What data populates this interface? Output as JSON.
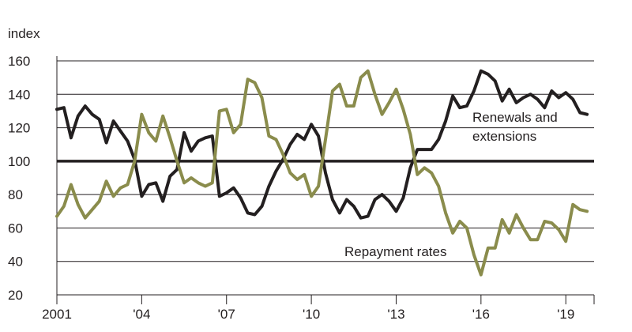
{
  "chart_data": {
    "type": "line",
    "ylabel": "index",
    "ylim": [
      20,
      160
    ],
    "yticks": [
      20,
      40,
      60,
      80,
      100,
      120,
      140,
      160
    ],
    "xlim": [
      2001,
      2020.0
    ],
    "xticks": [
      {
        "value": 2001,
        "label": "2001"
      },
      {
        "value": 2004,
        "label": "'04"
      },
      {
        "value": 2007,
        "label": "'07"
      },
      {
        "value": 2010,
        "label": "'10"
      },
      {
        "value": 2013,
        "label": "'13"
      },
      {
        "value": 2016,
        "label": "'16"
      },
      {
        "value": 2019,
        "label": "'19"
      }
    ],
    "grid": true,
    "reference_line": 100,
    "series": [
      {
        "name": "Renewals and extensions",
        "label_lines": [
          "Renewals and",
          "extensions"
        ],
        "color": "#231f20",
        "x": [
          2001.0,
          2001.25,
          2001.5,
          2001.75,
          2002.0,
          2002.25,
          2002.5,
          2002.75,
          2003.0,
          2003.25,
          2003.5,
          2003.75,
          2004.0,
          2004.25,
          2004.5,
          2004.75,
          2005.0,
          2005.25,
          2005.5,
          2005.75,
          2006.0,
          2006.25,
          2006.5,
          2006.75,
          2007.0,
          2007.25,
          2007.5,
          2007.75,
          2008.0,
          2008.25,
          2008.5,
          2008.75,
          2009.0,
          2009.25,
          2009.5,
          2009.75,
          2010.0,
          2010.25,
          2010.5,
          2010.75,
          2011.0,
          2011.25,
          2011.5,
          2011.75,
          2012.0,
          2012.25,
          2012.5,
          2012.75,
          2013.0,
          2013.25,
          2013.5,
          2013.75,
          2014.0,
          2014.25,
          2014.5,
          2014.75,
          2015.0,
          2015.25,
          2015.5,
          2015.75,
          2016.0,
          2016.25,
          2016.5,
          2016.75,
          2017.0,
          2017.25,
          2017.5,
          2017.75,
          2018.0,
          2018.25,
          2018.5,
          2018.75,
          2019.0,
          2019.25,
          2019.5,
          2019.75
        ],
        "values": [
          131,
          132,
          114,
          127,
          133,
          128,
          125,
          111,
          124,
          118,
          112,
          101,
          79,
          86,
          87,
          76,
          91,
          95,
          117,
          106,
          112,
          114,
          115,
          79,
          81,
          84,
          78,
          69,
          68,
          73,
          85,
          94,
          101,
          110,
          116,
          113,
          122,
          115,
          93,
          77,
          69,
          77,
          73,
          66,
          67,
          77,
          80,
          76,
          70,
          78,
          96,
          107,
          107,
          107,
          113,
          124,
          139,
          132,
          133,
          142,
          154,
          152,
          148,
          136,
          143,
          135,
          138,
          140,
          137,
          132,
          142,
          138,
          141,
          137,
          129,
          128
        ]
      },
      {
        "name": "Repayment rates",
        "label_lines": [
          "Repayment rates"
        ],
        "color": "#8a8c4c",
        "x": [
          2001.0,
          2001.25,
          2001.5,
          2001.75,
          2002.0,
          2002.25,
          2002.5,
          2002.75,
          2003.0,
          2003.25,
          2003.5,
          2003.75,
          2004.0,
          2004.25,
          2004.5,
          2004.75,
          2005.0,
          2005.25,
          2005.5,
          2005.75,
          2006.0,
          2006.25,
          2006.5,
          2006.75,
          2007.0,
          2007.25,
          2007.5,
          2007.75,
          2008.0,
          2008.25,
          2008.5,
          2008.75,
          2009.0,
          2009.25,
          2009.5,
          2009.75,
          2010.0,
          2010.25,
          2010.5,
          2010.75,
          2011.0,
          2011.25,
          2011.5,
          2011.75,
          2012.0,
          2012.25,
          2012.5,
          2012.75,
          2013.0,
          2013.25,
          2013.5,
          2013.75,
          2014.0,
          2014.25,
          2014.5,
          2014.75,
          2015.0,
          2015.25,
          2015.5,
          2015.75,
          2016.0,
          2016.25,
          2016.5,
          2016.75,
          2017.0,
          2017.25,
          2017.5,
          2017.75,
          2018.0,
          2018.25,
          2018.5,
          2018.75,
          2019.0,
          2019.25,
          2019.5,
          2019.75
        ],
        "values": [
          67,
          73,
          86,
          74,
          66,
          71,
          76,
          88,
          79,
          84,
          86,
          100,
          128,
          117,
          112,
          127,
          114,
          100,
          87,
          90,
          87,
          85,
          87,
          130,
          131,
          117,
          122,
          149,
          147,
          138,
          115,
          113,
          104,
          93,
          89,
          92,
          79,
          85,
          113,
          142,
          146,
          133,
          133,
          150,
          154,
          140,
          128,
          135,
          143,
          131,
          116,
          92,
          96,
          93,
          85,
          69,
          57,
          64,
          60,
          44,
          32,
          48,
          48,
          65,
          57,
          68,
          60,
          53,
          53,
          64,
          63,
          59,
          52,
          74,
          71,
          70
        ]
      }
    ],
    "annotations": [
      {
        "series": 0,
        "text": "Renewals and extensions"
      },
      {
        "series": 1,
        "text": "Repayment rates"
      }
    ]
  }
}
